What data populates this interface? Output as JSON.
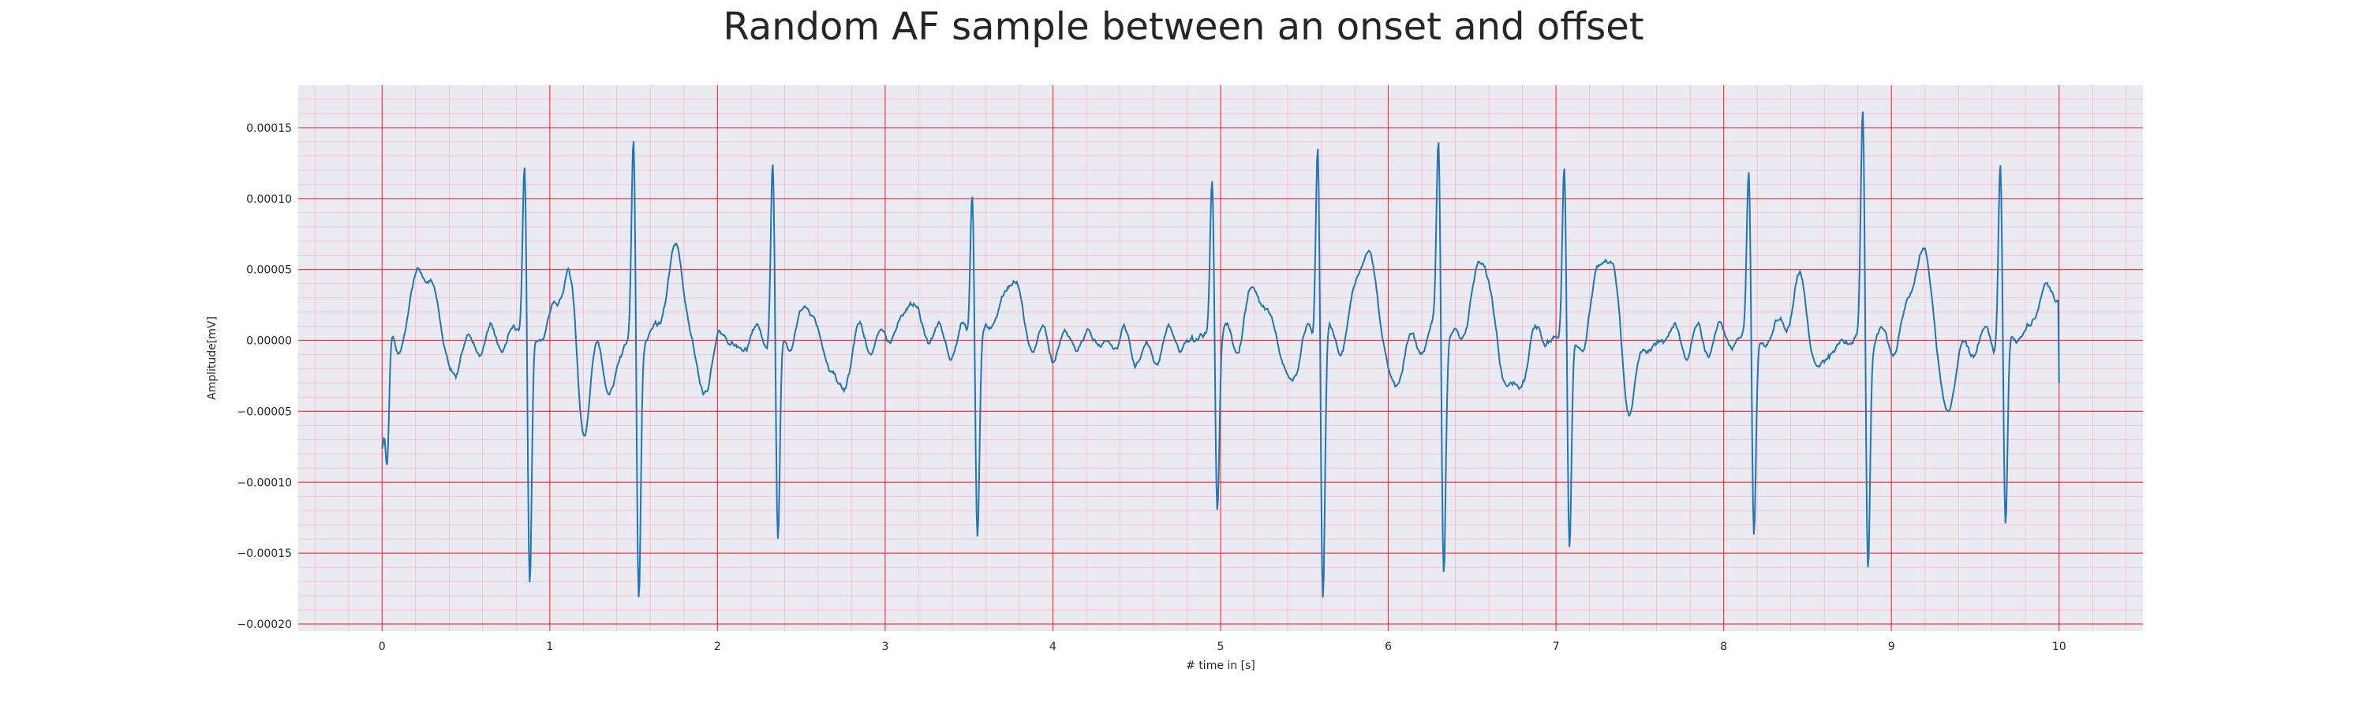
{
  "chart_data": {
    "type": "line",
    "title": "Random AF sample between an onset and offset",
    "xlabel": "# time in [s]",
    "ylabel": "Amplitude[mV]",
    "xlim": [
      -0.5,
      10.5
    ],
    "ylim": [
      -0.000205,
      0.00018
    ],
    "xticks": [
      0,
      1,
      2,
      3,
      4,
      5,
      6,
      7,
      8,
      9,
      10
    ],
    "yticks": [
      -0.0002,
      -0.00015,
      -0.0001,
      -5e-05,
      0.0,
      5e-05,
      0.0001,
      0.00015
    ],
    "ytick_labels": [
      "−0.00020",
      "−0.00015",
      "−0.00010",
      "−0.00005",
      "0.00000",
      "0.00005",
      "0.00010",
      "0.00015"
    ],
    "grid": true,
    "grid_color": "#ff0000",
    "minor_grid_color": "#ffb6c1",
    "plot_bg": "#eaeaf2",
    "line_color": "#1f77b4",
    "beats": [
      {
        "t": 0.0,
        "h": -7e-05,
        "d": -9.7e-05,
        "r": 0.0
      },
      {
        "t": 0.85,
        "h": 0.000132,
        "d": -0.000175,
        "r": 0.0
      },
      {
        "t": 1.5,
        "h": 0.000147,
        "d": -0.000187,
        "r": 0.0
      },
      {
        "t": 2.33,
        "h": 0.000128,
        "d": -0.000158,
        "r": 0.0
      },
      {
        "t": 3.52,
        "h": 0.000122,
        "d": -0.000135,
        "r": 0.0
      },
      {
        "t": 4.95,
        "h": 0.00012,
        "d": -0.000122,
        "r": 0.0
      },
      {
        "t": 5.58,
        "h": 0.000153,
        "d": -0.000187,
        "r": 0.0
      },
      {
        "t": 6.3,
        "h": 0.000143,
        "d": -0.000162,
        "r": 0.0
      },
      {
        "t": 7.05,
        "h": 0.000131,
        "d": -0.00015,
        "r": 0.0
      },
      {
        "t": 8.15,
        "h": 0.000122,
        "d": -0.000145,
        "r": 0.0
      },
      {
        "t": 8.83,
        "h": 0.000165,
        "d": -0.000163,
        "r": 0.0
      },
      {
        "t": 9.65,
        "h": 0.000135,
        "d": -0.000142,
        "r": 0.0
      }
    ],
    "waves": [
      {
        "t": 0.22,
        "a": 5.2e-05,
        "w": 0.035
      },
      {
        "t": 0.3,
        "a": 3.4e-05,
        "w": 0.04
      },
      {
        "t": 0.42,
        "a": -2e-05,
        "w": 0.05
      },
      {
        "t": 1.1,
        "a": 5e-05,
        "w": 0.06
      },
      {
        "t": 1.2,
        "a": -6.5e-05,
        "w": 0.04
      },
      {
        "t": 1.37,
        "a": -4e-05,
        "w": 0.04
      },
      {
        "t": 1.75,
        "a": 5.8e-05,
        "w": 0.06
      },
      {
        "t": 1.9,
        "a": -4e-05,
        "w": 0.04
      },
      {
        "t": 2.55,
        "a": 2.5e-05,
        "w": 0.05
      },
      {
        "t": 2.72,
        "a": -3.8e-05,
        "w": 0.05
      },
      {
        "t": 3.15,
        "a": 2.5e-05,
        "w": 0.06
      },
      {
        "t": 3.75,
        "a": 4e-05,
        "w": 0.06
      },
      {
        "t": 4.55,
        "a": -1.2e-05,
        "w": 0.05
      },
      {
        "t": 5.22,
        "a": 3.5e-05,
        "w": 0.06
      },
      {
        "t": 5.4,
        "a": -2.5e-05,
        "w": 0.05
      },
      {
        "t": 5.87,
        "a": 6.5e-05,
        "w": 0.06
      },
      {
        "t": 6.02,
        "a": -3.5e-05,
        "w": 0.05
      },
      {
        "t": 6.55,
        "a": 5.8e-05,
        "w": 0.05
      },
      {
        "t": 6.75,
        "a": -4e-05,
        "w": 0.05
      },
      {
        "t": 7.3,
        "a": 7e-05,
        "w": 0.06
      },
      {
        "t": 7.43,
        "a": -4.5e-05,
        "w": 0.05
      },
      {
        "t": 8.45,
        "a": 4e-05,
        "w": 0.05
      },
      {
        "t": 8.58,
        "a": -2.5e-05,
        "w": 0.05
      },
      {
        "t": 9.18,
        "a": 6.2e-05,
        "w": 0.06
      },
      {
        "t": 9.33,
        "a": -5.2e-05,
        "w": 0.05
      },
      {
        "t": 9.95,
        "a": 4.5e-05,
        "w": 0.07
      }
    ],
    "end_value": -3e-05
  }
}
